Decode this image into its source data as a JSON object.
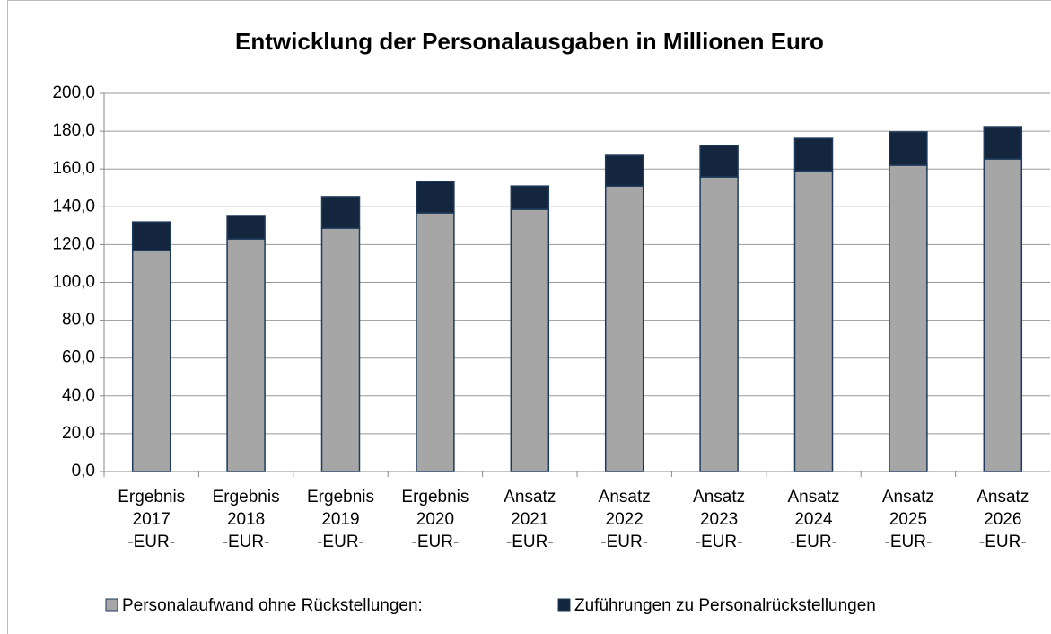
{
  "chart_data": {
    "type": "stacked_bar",
    "title": "Entwicklung der Personalausgaben in Millionen Euro",
    "categories": [
      [
        "Ergebnis",
        "2017",
        "-EUR-"
      ],
      [
        "Ergebnis",
        "2018",
        "-EUR-"
      ],
      [
        "Ergebnis",
        "2019",
        "-EUR-"
      ],
      [
        "Ergebnis",
        "2020",
        "-EUR-"
      ],
      [
        "Ansatz",
        "2021",
        "-EUR-"
      ],
      [
        "Ansatz",
        "2022",
        "-EUR-"
      ],
      [
        "Ansatz",
        "2023",
        "-EUR-"
      ],
      [
        "Ansatz",
        "2024",
        "-EUR-"
      ],
      [
        "Ansatz",
        "2025",
        "-EUR-"
      ],
      [
        "Ansatz",
        "2026",
        "-EUR-"
      ]
    ],
    "series": [
      {
        "name": "Personalaufwand ohne Rückstellungen:",
        "color": "#a6a6a6",
        "values": [
          117,
          123,
          128.7,
          136.8,
          138.7,
          151,
          155.8,
          159,
          162,
          165.3
        ]
      },
      {
        "name": "Zuführungen zu Personalrückstellungen",
        "color": "#13263d",
        "values": [
          15,
          12.4,
          16.7,
          16.6,
          12.3,
          16.2,
          16.6,
          17.2,
          17.6,
          17.1
        ]
      }
    ],
    "ylim": [
      0,
      200
    ],
    "yticks": [
      {
        "value": 0,
        "label": "0,0"
      },
      {
        "value": 20,
        "label": "20,0"
      },
      {
        "value": 40,
        "label": "40,0"
      },
      {
        "value": 60,
        "label": "60,0"
      },
      {
        "value": 80,
        "label": "80,0"
      },
      {
        "value": 100,
        "label": "100,0"
      },
      {
        "value": 120,
        "label": "120,0"
      },
      {
        "value": 140,
        "label": "140,0"
      },
      {
        "value": 160,
        "label": "160,0"
      },
      {
        "value": 180,
        "label": "180,0"
      },
      {
        "value": 200,
        "label": "200,0"
      }
    ],
    "grid": true,
    "legend": "bottom"
  }
}
